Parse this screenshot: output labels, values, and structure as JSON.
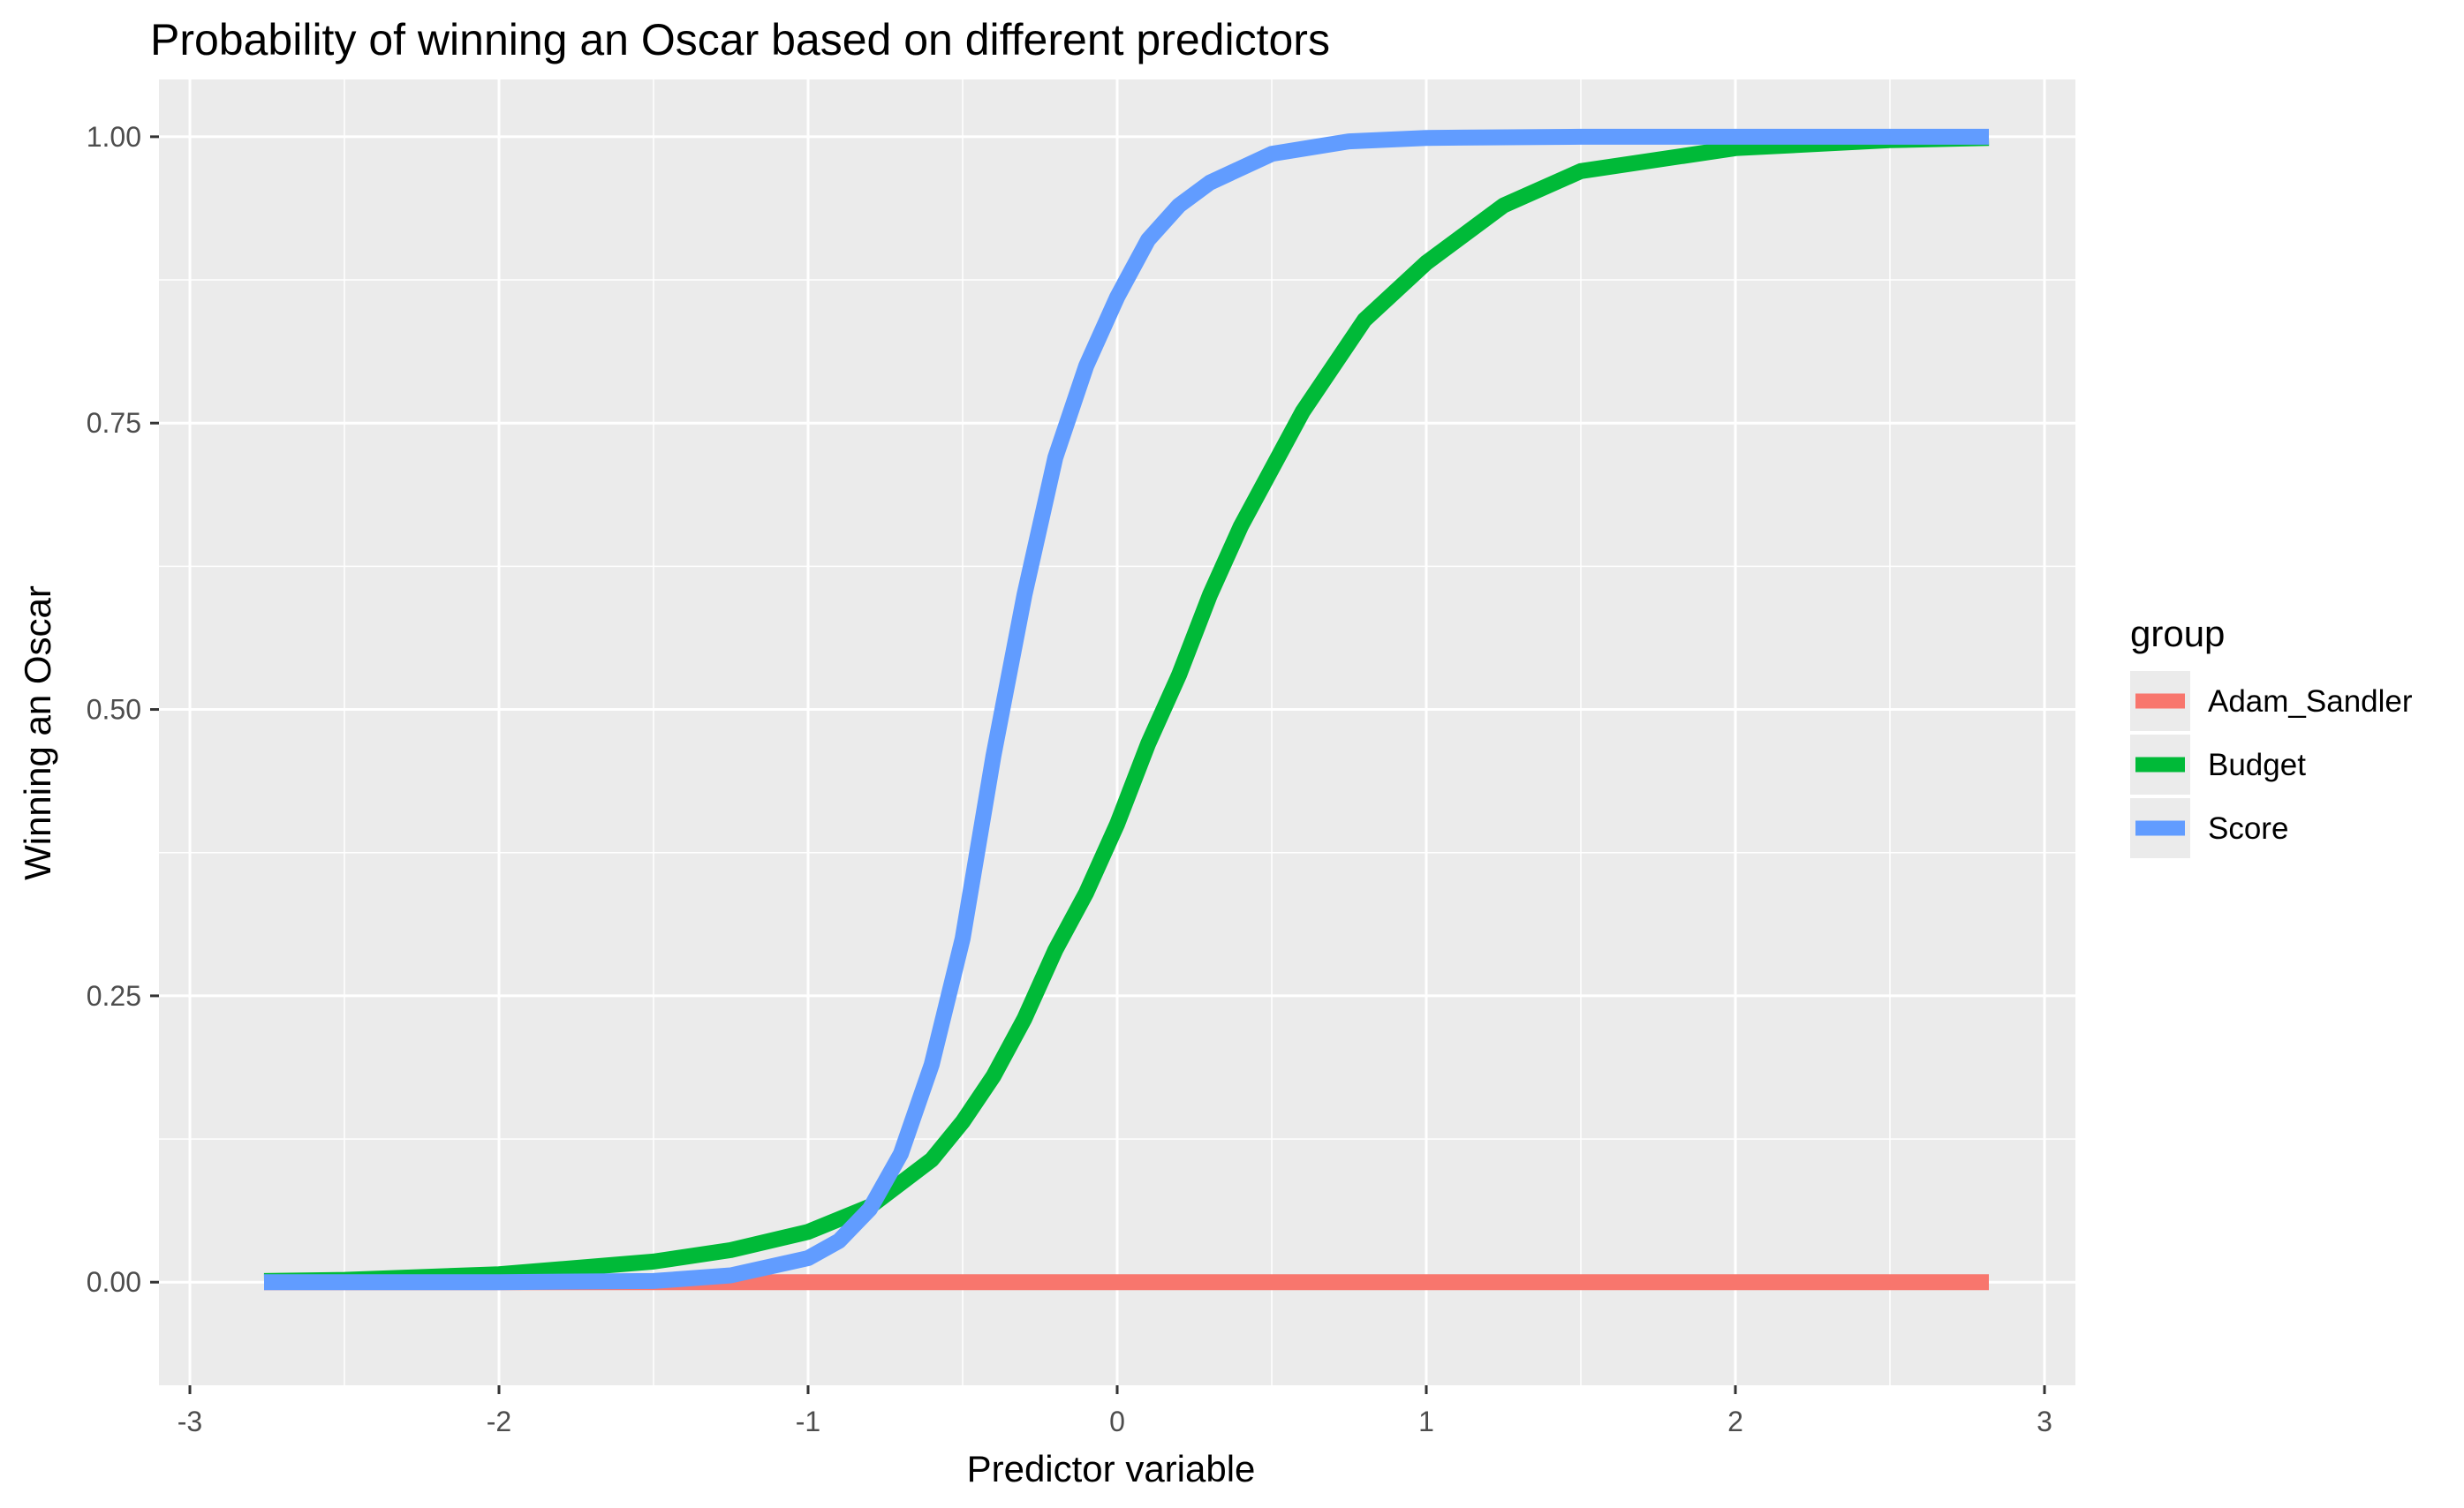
{
  "chart_data": {
    "type": "line",
    "title": "Probability of winning an Oscar based on different predictors",
    "xlabel": "Predictor variable",
    "ylabel": "Winning an Oscar",
    "xlim": [
      -3.1,
      3.1
    ],
    "ylim": [
      -0.09,
      1.05
    ],
    "x_ticks": [
      -3,
      -2,
      -1,
      0,
      1,
      2,
      3
    ],
    "x_tick_labels": [
      "-3",
      "-2",
      "-1",
      "0",
      "1",
      "2",
      "3"
    ],
    "y_ticks": [
      0,
      0.25,
      0.5,
      0.75,
      1.0
    ],
    "y_tick_labels": [
      "0.00",
      "0.25",
      "0.50",
      "0.75",
      "1.00"
    ],
    "grid": true,
    "legend": {
      "title": "group",
      "position": "right"
    },
    "series": [
      {
        "name": "Adam_Sandler",
        "color": "#F8766D",
        "x": [
          -2.76,
          2.82
        ],
        "y": [
          0,
          0
        ]
      },
      {
        "name": "Budget",
        "color": "#00BA38",
        "x": [
          -2.76,
          -2.5,
          -2.0,
          -1.5,
          -1.25,
          -1.0,
          -0.8,
          -0.6,
          -0.5,
          -0.4,
          -0.3,
          -0.2,
          -0.1,
          0.0,
          0.1,
          0.2,
          0.3,
          0.4,
          0.5,
          0.6,
          0.8,
          1.0,
          1.25,
          1.5,
          2.0,
          2.5,
          2.82
        ],
        "y": [
          0.001,
          0.002,
          0.007,
          0.018,
          0.028,
          0.044,
          0.066,
          0.107,
          0.14,
          0.18,
          0.23,
          0.29,
          0.34,
          0.4,
          0.47,
          0.53,
          0.6,
          0.66,
          0.71,
          0.76,
          0.84,
          0.89,
          0.94,
          0.97,
          0.99,
          0.997,
          0.999
        ]
      },
      {
        "name": "Score",
        "color": "#619CFF",
        "x": [
          -2.76,
          -2.0,
          -1.5,
          -1.25,
          -1.0,
          -0.9,
          -0.8,
          -0.7,
          -0.6,
          -0.5,
          -0.4,
          -0.3,
          -0.2,
          -0.1,
          0.0,
          0.1,
          0.2,
          0.3,
          0.5,
          0.75,
          1.0,
          1.5,
          2.0,
          2.82
        ],
        "y": [
          0.0,
          0.0,
          0.001,
          0.006,
          0.021,
          0.036,
          0.064,
          0.112,
          0.19,
          0.3,
          0.46,
          0.6,
          0.72,
          0.8,
          0.86,
          0.91,
          0.94,
          0.96,
          0.985,
          0.996,
          0.999,
          1.0,
          1.0,
          1.0
        ]
      }
    ]
  }
}
